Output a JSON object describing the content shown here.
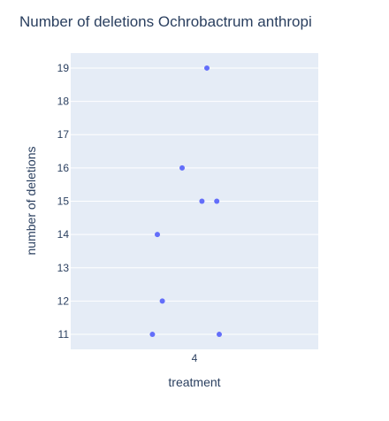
{
  "chart_data": {
    "type": "scatter",
    "title": "Number of deletions Ochrobactrum anthropi",
    "xlabel": "treatment",
    "ylabel": "number of deletions",
    "x_categories": [
      "4"
    ],
    "ylim": [
      10.55,
      19.45
    ],
    "yticks": [
      11,
      12,
      13,
      14,
      15,
      16,
      17,
      18,
      19
    ],
    "grid": true,
    "legend": "none",
    "series": [
      {
        "x": [
          "4",
          "4",
          "4",
          "4",
          "4",
          "4",
          "4",
          "4"
        ],
        "jitter": [
          0.05,
          -0.05,
          0.03,
          0.09,
          -0.15,
          -0.13,
          0.1,
          -0.17
        ],
        "y": [
          19,
          16,
          15,
          15,
          14,
          12,
          11,
          11
        ]
      }
    ],
    "colors": {
      "marker": "#636efa",
      "plot_bg": "#e5ecf6",
      "text": "#2a3f5f"
    }
  }
}
